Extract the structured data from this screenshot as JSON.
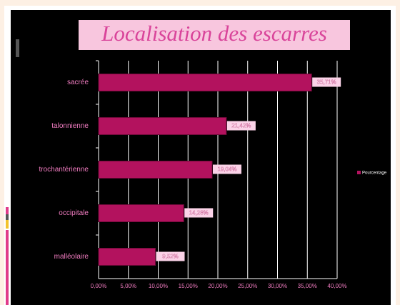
{
  "chart_data": {
    "type": "bar",
    "orientation": "horizontal",
    "title": "Localisation des escarres",
    "categories": [
      "sacrée",
      "talonnienne",
      "trochantérienne",
      "occipitale",
      "malléolaire"
    ],
    "series": [
      {
        "name": "Pourcentage",
        "color": "#b3125e",
        "values": [
          35.71,
          21.42,
          19.04,
          14.28,
          9.52
        ],
        "value_labels": [
          "35,71%",
          "21,42%",
          "19,04%",
          "14,28%",
          "9,52%"
        ]
      }
    ],
    "xlim": [
      0,
      40
    ],
    "xticks": [
      {
        "value": 0,
        "label": "0,00%"
      },
      {
        "value": 5,
        "label": "5,00%"
      },
      {
        "value": 10,
        "label": "10,00%"
      },
      {
        "value": 15,
        "label": "15,00%"
      },
      {
        "value": 20,
        "label": "20,00%"
      },
      {
        "value": 25,
        "label": "25,00%"
      },
      {
        "value": 30,
        "label": "30,00%"
      },
      {
        "value": 35,
        "label": "35,00%"
      },
      {
        "value": 40,
        "label": "40,00%"
      }
    ],
    "grid": true,
    "legend": "right"
  }
}
